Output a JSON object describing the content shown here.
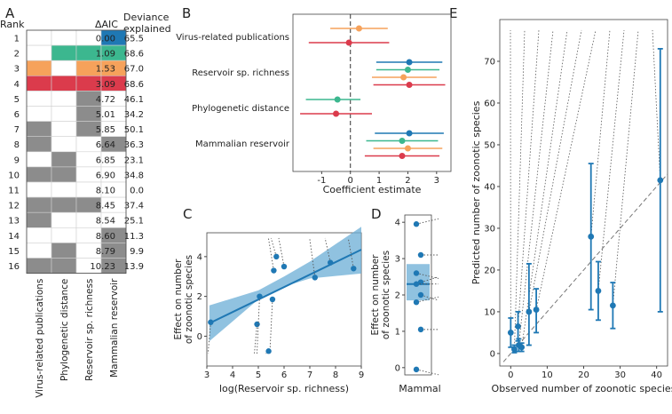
{
  "colors": {
    "c1": "#1f78b4",
    "c2": "#3cb78f",
    "c3": "#f6a25b",
    "c4": "#db3b4c",
    "gray": "#8c8c8c",
    "fill": "#6baed6"
  },
  "panels": {
    "A": "A",
    "B": "B",
    "C": "C",
    "D": "D",
    "E": "E"
  },
  "chart_data": [
    {
      "type": "table",
      "panel": "A",
      "headers": {
        "rank": "Rank",
        "daic": "ΔAIC",
        "dev1": "Deviance",
        "dev2": "explained"
      },
      "columns": [
        "Virus-related publications",
        "Phylogenetic distance",
        "Reservoir sp. richness",
        "Mammalian reservoir"
      ],
      "rows": [
        {
          "rank": "1",
          "daic": "0.00",
          "dev": "65.5",
          "cells": [
            0,
            0,
            0,
            1
          ],
          "color": "c1"
        },
        {
          "rank": "2",
          "daic": "1.09",
          "dev": "68.6",
          "cells": [
            0,
            1,
            1,
            1
          ],
          "color": "c2"
        },
        {
          "rank": "3",
          "daic": "1.53",
          "dev": "67.0",
          "cells": [
            1,
            0,
            1,
            1
          ],
          "color": "c3"
        },
        {
          "rank": "4",
          "daic": "3.09",
          "dev": "68.6",
          "cells": [
            1,
            1,
            1,
            1
          ],
          "color": "c4"
        },
        {
          "rank": "5",
          "daic": "4.72",
          "dev": "46.1",
          "cells": [
            0,
            0,
            1,
            0
          ],
          "color": "gray"
        },
        {
          "rank": "6",
          "daic": "5.01",
          "dev": "34.2",
          "cells": [
            0,
            0,
            1,
            0
          ],
          "color": "gray"
        },
        {
          "rank": "7",
          "daic": "5.85",
          "dev": "50.1",
          "cells": [
            1,
            0,
            1,
            0
          ],
          "color": "gray"
        },
        {
          "rank": "8",
          "daic": "6.64",
          "dev": "36.3",
          "cells": [
            1,
            0,
            0,
            1
          ],
          "color": "gray"
        },
        {
          "rank": "9",
          "daic": "6.85",
          "dev": "23.1",
          "cells": [
            0,
            1,
            0,
            0
          ],
          "color": "gray"
        },
        {
          "rank": "10",
          "daic": "6.90",
          "dev": "34.8",
          "cells": [
            1,
            1,
            0,
            0
          ],
          "color": "gray"
        },
        {
          "rank": "11",
          "daic": "8.10",
          "dev": "0.0",
          "cells": [
            0,
            0,
            0,
            0
          ],
          "color": "gray"
        },
        {
          "rank": "12",
          "daic": "8.45",
          "dev": "37.4",
          "cells": [
            1,
            1,
            1,
            0
          ],
          "color": "gray"
        },
        {
          "rank": "13",
          "daic": "8.54",
          "dev": "25.1",
          "cells": [
            1,
            0,
            0,
            0
          ],
          "color": "gray"
        },
        {
          "rank": "14",
          "daic": "8.60",
          "dev": "11.3",
          "cells": [
            0,
            0,
            0,
            1
          ],
          "color": "gray"
        },
        {
          "rank": "15",
          "daic": "8.79",
          "dev": "9.9",
          "cells": [
            0,
            1,
            0,
            1
          ],
          "color": "gray"
        },
        {
          "rank": "16",
          "daic": "10.23",
          "dev": "13.9",
          "cells": [
            1,
            1,
            0,
            1
          ],
          "color": "gray"
        }
      ]
    },
    {
      "type": "scatter",
      "panel": "B",
      "subtype": "coefficient-plot",
      "xlabel": "Coefficient estimate",
      "xlim": [
        -2,
        3.5
      ],
      "xticks": [
        -1,
        0,
        1,
        2,
        3
      ],
      "groups": [
        {
          "label": "Virus-related publications",
          "estimates": [
            {
              "color": "c3",
              "est": 0.3,
              "lo": -0.7,
              "hi": 1.3
            },
            {
              "color": "c4",
              "est": -0.05,
              "lo": -1.45,
              "hi": 1.35
            }
          ]
        },
        {
          "label": "Reservoir sp. richness",
          "estimates": [
            {
              "color": "c1",
              "est": 2.05,
              "lo": 0.9,
              "hi": 3.2
            },
            {
              "color": "c2",
              "est": 2.0,
              "lo": 0.9,
              "hi": 3.1
            },
            {
              "color": "c3",
              "est": 1.85,
              "lo": 0.75,
              "hi": 3.0
            },
            {
              "color": "c4",
              "est": 2.05,
              "lo": 0.8,
              "hi": 3.3
            }
          ]
        },
        {
          "label": "Phylogenetic distance",
          "estimates": [
            {
              "color": "c2",
              "est": -0.45,
              "lo": -1.55,
              "hi": 0.35
            },
            {
              "color": "c4",
              "est": -0.5,
              "lo": -1.75,
              "hi": 0.75
            }
          ]
        },
        {
          "label": "Mammalian reservoir",
          "estimates": [
            {
              "color": "c1",
              "est": 2.05,
              "lo": 0.85,
              "hi": 3.25
            },
            {
              "color": "c2",
              "est": 1.8,
              "lo": 0.55,
              "hi": 3.05
            },
            {
              "color": "c3",
              "est": 2.0,
              "lo": 0.8,
              "hi": 3.2
            },
            {
              "color": "c4",
              "est": 1.8,
              "lo": 0.5,
              "hi": 3.1
            }
          ]
        }
      ]
    },
    {
      "type": "scatter",
      "panel": "C",
      "xlabel": "log(Reservoir sp. richness)",
      "ylabel1": "Effect on number",
      "ylabel2": "of zoonotic species",
      "xlim": [
        3,
        9
      ],
      "ylim": [
        -1.5,
        5.2
      ],
      "xticks": [
        3,
        4,
        5,
        6,
        7,
        8,
        9
      ],
      "yticks": [
        0,
        2,
        4
      ],
      "fit": {
        "x0": 3.1,
        "y0": 0.65,
        "x1": 9.0,
        "y1": 4.35
      },
      "band": {
        "lower": [
          [
            3.1,
            -0.25
          ],
          [
            5,
            1.85
          ],
          [
            6,
            2.5
          ],
          [
            7,
            2.9
          ],
          [
            9,
            3.15
          ]
        ],
        "upper": [
          [
            3.1,
            1.55
          ],
          [
            5,
            2.3
          ],
          [
            6,
            3.0
          ],
          [
            7,
            3.75
          ],
          [
            9,
            5.5
          ]
        ]
      },
      "points": [
        {
          "x": 3.15,
          "y": 0.7
        },
        {
          "x": 4.95,
          "y": 0.6
        },
        {
          "x": 5.05,
          "y": 2.0
        },
        {
          "x": 5.55,
          "y": 1.85
        },
        {
          "x": 5.6,
          "y": 3.3
        },
        {
          "x": 5.7,
          "y": 4.0
        },
        {
          "x": 6.0,
          "y": 3.5
        },
        {
          "x": 5.4,
          "y": -0.75
        },
        {
          "x": 7.2,
          "y": 2.95
        },
        {
          "x": 7.8,
          "y": 3.7
        },
        {
          "x": 8.7,
          "y": 3.4
        }
      ]
    },
    {
      "type": "scatter",
      "panel": "D",
      "xlabel": "Mammal",
      "ylabel1": "Effect on number",
      "ylabel2": "of zoonotic species",
      "ylim": [
        -0.2,
        4.2
      ],
      "yticks": [
        0,
        1,
        2,
        3,
        4
      ],
      "band": {
        "lo": 1.85,
        "hi": 2.85
      },
      "mean": 2.3,
      "points": [
        3.95,
        3.1,
        2.6,
        2.35,
        2.3,
        2.0,
        1.8,
        1.05,
        -0.05
      ]
    },
    {
      "type": "scatter",
      "panel": "E",
      "xlabel": "Observed number of zoonotic species",
      "ylabel": "Predicted number of zoonotic species",
      "xlim": [
        -3,
        43
      ],
      "ylim": [
        -3,
        80
      ],
      "xticks": [
        0,
        10,
        20,
        30,
        40
      ],
      "yticks": [
        0,
        10,
        20,
        30,
        40,
        50,
        60,
        70
      ],
      "points": [
        {
          "x": 0,
          "y": 5,
          "lo": 1.5,
          "hi": 8.5
        },
        {
          "x": 1,
          "y": 1,
          "lo": 0.2,
          "hi": 2
        },
        {
          "x": 2,
          "y": 6.5,
          "lo": 3,
          "hi": 10
        },
        {
          "x": 2.2,
          "y": 2,
          "lo": 0.5,
          "hi": 3.5
        },
        {
          "x": 3,
          "y": 1.5,
          "lo": 0.5,
          "hi": 2.5
        },
        {
          "x": 5,
          "y": 10,
          "lo": 2,
          "hi": 21.5
        },
        {
          "x": 7,
          "y": 10.5,
          "lo": 5,
          "hi": 15.5
        },
        {
          "x": 22,
          "y": 28,
          "lo": 10.5,
          "hi": 45.5
        },
        {
          "x": 24,
          "y": 15,
          "lo": 8,
          "hi": 22
        },
        {
          "x": 28,
          "y": 11.5,
          "lo": 6,
          "hi": 17
        },
        {
          "x": 41,
          "y": 41.5,
          "lo": 10,
          "hi": 73
        }
      ]
    }
  ]
}
